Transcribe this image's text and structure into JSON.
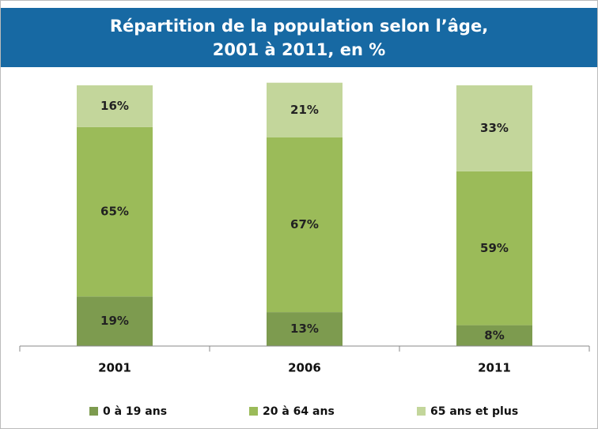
{
  "chart_data": {
    "type": "bar",
    "stacked": true,
    "title": [
      "Répartition de la population selon l’âge,",
      "2001 à 2011, en %"
    ],
    "categories": [
      "2001",
      "2006",
      "2011"
    ],
    "series": [
      {
        "name": "0 à 19 ans",
        "color": "#7d9b4f",
        "values": [
          19,
          13,
          8
        ],
        "value_labels": [
          "19%",
          "13%",
          "8%"
        ]
      },
      {
        "name": "20 à 64 ans",
        "color": "#9bbb59",
        "values": [
          65,
          67,
          59
        ],
        "value_labels": [
          "65%",
          "67%",
          "59%"
        ]
      },
      {
        "name": "65 ans et plus",
        "color": "#c3d69b",
        "values": [
          16,
          21,
          33
        ],
        "value_labels": [
          "16%",
          "21%",
          "33%"
        ]
      }
    ],
    "ylim": [
      0,
      100
    ]
  }
}
